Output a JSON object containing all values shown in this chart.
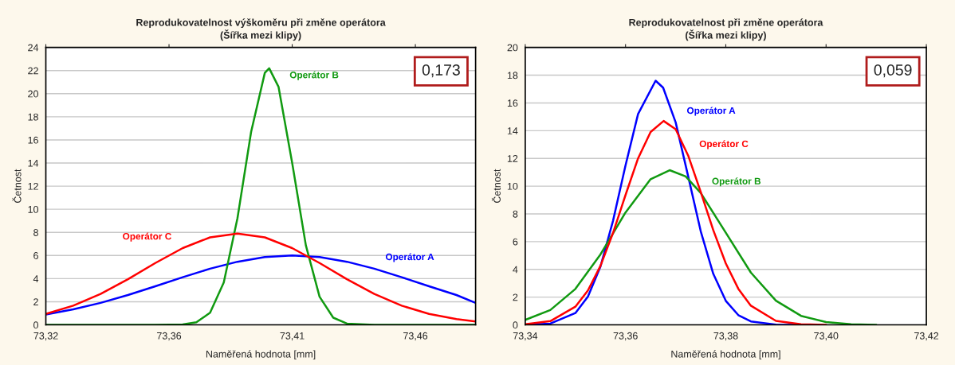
{
  "chart_data": [
    {
      "type": "line",
      "title": "Reprodukovatelnost výškoměru při změne operátora\n(Šířka mezi klipy)",
      "xlabel": "Naměřená hodnota [mm]",
      "ylabel": "Četnost",
      "xlim": [
        73.32,
        73.477
      ],
      "xticks": [
        {
          "value": 73.32,
          "label": "73,32"
        },
        {
          "value": 73.365,
          "label": "73,36"
        },
        {
          "value": 73.41,
          "label": "73,41"
        },
        {
          "value": 73.455,
          "label": "73,46"
        }
      ],
      "ylim": [
        0,
        24
      ],
      "yticks": [
        0,
        2,
        4,
        6,
        8,
        10,
        12,
        14,
        16,
        18,
        20,
        22,
        24
      ],
      "grid": "y",
      "legend": false,
      "marker": "none",
      "line_style": "solid",
      "series": [
        {
          "name": "Operátor A",
          "color": "#0000ff",
          "x": [
            73.32,
            73.33,
            73.34,
            73.35,
            73.36,
            73.37,
            73.38,
            73.39,
            73.4,
            73.41,
            73.42,
            73.43,
            73.44,
            73.45,
            73.46,
            73.47,
            73.477
          ],
          "values": [
            0.9,
            1.34,
            1.9,
            2.58,
            3.34,
            4.12,
            4.86,
            5.46,
            5.86,
            6.0,
            5.86,
            5.46,
            4.86,
            4.12,
            3.34,
            2.58,
            1.9
          ]
        },
        {
          "name": "Operátor B",
          "color": "#119a11",
          "x": [
            73.32,
            73.35,
            73.36,
            73.37,
            73.375,
            73.38,
            73.385,
            73.39,
            73.395,
            73.4,
            73.4016,
            73.405,
            73.41,
            73.415,
            73.42,
            73.425,
            73.43,
            73.44,
            73.477
          ],
          "values": [
            0,
            0,
            0,
            0.03,
            0.22,
            1.05,
            3.67,
            9.22,
            16.7,
            21.8,
            22.2,
            20.6,
            14.0,
            6.87,
            2.43,
            0.62,
            0.11,
            0,
            0
          ]
        },
        {
          "name": "Operátor C",
          "color": "#ff0000",
          "x": [
            73.32,
            73.33,
            73.34,
            73.35,
            73.36,
            73.37,
            73.38,
            73.39,
            73.4,
            73.41,
            73.42,
            73.43,
            73.44,
            73.45,
            73.46,
            73.47,
            73.477
          ],
          "values": [
            0.95,
            1.66,
            2.68,
            3.95,
            5.35,
            6.64,
            7.57,
            7.9,
            7.57,
            6.64,
            5.35,
            3.95,
            2.68,
            1.66,
            0.95,
            0.5,
            0.3
          ]
        }
      ],
      "annotations": [
        "0,173"
      ]
    },
    {
      "type": "line",
      "title": "Reprodukovatelnost při změne operátora\n(Šířka mezi klipy)",
      "xlabel": "Naměřená hodnota [mm]",
      "ylabel": "Četnost",
      "xlim": [
        73.34,
        73.42
      ],
      "xticks": [
        {
          "value": 73.34,
          "label": "73,34"
        },
        {
          "value": 73.36,
          "label": "73,36"
        },
        {
          "value": 73.38,
          "label": "73,38"
        },
        {
          "value": 73.4,
          "label": "73,40"
        },
        {
          "value": 73.42,
          "label": "73,42"
        }
      ],
      "ylim": [
        0,
        20
      ],
      "yticks": [
        0,
        2,
        4,
        6,
        8,
        10,
        12,
        14,
        16,
        18,
        20
      ],
      "grid": "y",
      "legend": false,
      "marker": "none",
      "line_style": "solid",
      "series": [
        {
          "name": "Operátor A",
          "color": "#0000ff",
          "x": [
            73.34,
            73.345,
            73.35,
            73.3525,
            73.355,
            73.3575,
            73.36,
            73.3625,
            73.366,
            73.3675,
            73.37,
            73.3725,
            73.375,
            73.3775,
            73.38,
            73.3825,
            73.385,
            73.39,
            73.395
          ],
          "values": [
            0.01,
            0.09,
            0.85,
            2.04,
            4.2,
            7.49,
            11.5,
            15.2,
            17.6,
            17.1,
            14.6,
            10.7,
            6.75,
            3.68,
            1.73,
            0.7,
            0.25,
            0.02,
            0
          ]
        },
        {
          "name": "Operátor B",
          "color": "#119a11",
          "x": [
            73.34,
            73.345,
            73.35,
            73.355,
            73.36,
            73.365,
            73.3688,
            73.372,
            73.375,
            73.38,
            73.385,
            73.39,
            73.395,
            73.4,
            73.405,
            73.41
          ],
          "values": [
            0.36,
            1.07,
            2.59,
            5.08,
            8.1,
            10.5,
            11.15,
            10.7,
            9.51,
            6.64,
            3.77,
            1.74,
            0.65,
            0.2,
            0.05,
            0
          ]
        },
        {
          "name": "Operátor C",
          "color": "#ff0000",
          "x": [
            73.34,
            73.345,
            73.35,
            73.3525,
            73.355,
            73.3575,
            73.36,
            73.3625,
            73.365,
            73.3676,
            73.37,
            73.3725,
            73.375,
            73.3775,
            73.38,
            73.3825,
            73.385,
            73.39,
            73.395,
            73.4
          ],
          "values": [
            0.04,
            0.27,
            1.31,
            2.48,
            4.25,
            6.62,
            9.36,
            12.0,
            13.9,
            14.7,
            14.1,
            12.2,
            9.58,
            6.83,
            4.43,
            2.6,
            1.38,
            0.29,
            0.04,
            0
          ]
        }
      ],
      "annotations": [
        "0,059"
      ]
    }
  ]
}
